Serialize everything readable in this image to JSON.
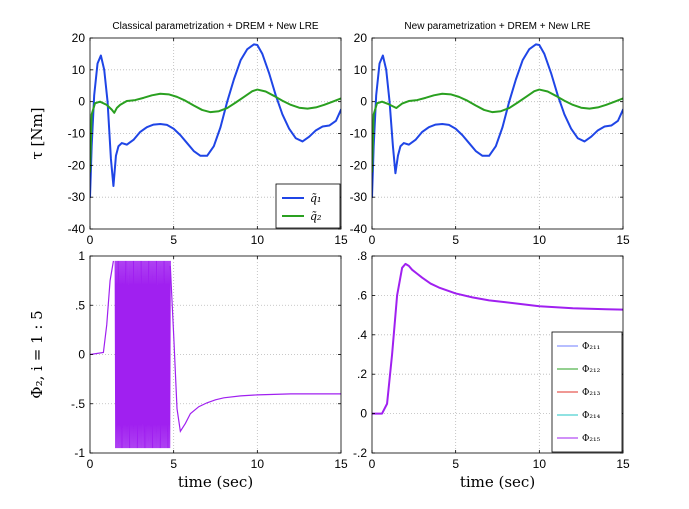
{
  "chart_data": [
    {
      "type": "line",
      "title": "Classical parametrization + DREM + New LRE",
      "xlabel": "",
      "ylabel": "τ [Nm]",
      "xlim": [
        0,
        15
      ],
      "ylim": [
        -40,
        20
      ],
      "xticks": [
        0,
        5,
        10,
        15
      ],
      "yticks": [
        -40,
        -30,
        -20,
        -10,
        0,
        10,
        20
      ],
      "grid": true,
      "legend": {
        "position": "bottom-right",
        "entries": [
          "q̃₁",
          "q̃₂"
        ]
      },
      "series": [
        {
          "name": "q̃₁",
          "color": "#1f45e6",
          "x": [
            0,
            0.1,
            0.25,
            0.45,
            0.65,
            0.85,
            1.05,
            1.25,
            1.4,
            1.55,
            1.7,
            1.9,
            2.2,
            2.6,
            3.0,
            3.4,
            3.8,
            4.2,
            4.6,
            5.0,
            5.4,
            5.8,
            6.2,
            6.6,
            7.0,
            7.4,
            7.8,
            8.2,
            8.6,
            9.0,
            9.4,
            9.8,
            10.0,
            10.3,
            10.7,
            11.1,
            11.5,
            11.9,
            12.3,
            12.7,
            13.1,
            13.5,
            13.9,
            14.3,
            14.7,
            15.0
          ],
          "y": [
            -30,
            -14,
            2,
            12,
            14.5,
            10,
            0,
            -18,
            -26.5,
            -17,
            -14,
            -13,
            -13.5,
            -12,
            -9.5,
            -8,
            -7.2,
            -7,
            -7.3,
            -8.5,
            -10.5,
            -13,
            -15.5,
            -17,
            -17,
            -14,
            -8,
            0,
            7,
            13,
            16.5,
            18,
            17.8,
            15,
            9,
            2,
            -4,
            -8.5,
            -11.5,
            -12.5,
            -11,
            -9,
            -7.8,
            -7.5,
            -6,
            -2.5
          ]
        },
        {
          "name": "q̃₂",
          "color": "#2aa020",
          "x": [
            0,
            0.1,
            0.3,
            0.6,
            1.0,
            1.3,
            1.45,
            1.6,
            1.8,
            2.2,
            2.7,
            3.2,
            3.7,
            4.2,
            4.7,
            5.2,
            5.7,
            6.2,
            6.7,
            7.2,
            7.7,
            8.2,
            8.7,
            9.2,
            9.7,
            10.0,
            10.5,
            11.0,
            11.5,
            12.0,
            12.5,
            13.0,
            13.5,
            14.0,
            14.5,
            15.0
          ],
          "y": [
            -22,
            -4,
            -0.5,
            0,
            -1,
            -2.5,
            -3.5,
            -2,
            -1,
            0.2,
            0.5,
            1.2,
            2,
            2.5,
            2.3,
            1.5,
            0.3,
            -1.2,
            -2.6,
            -3.3,
            -3,
            -2,
            -0.3,
            1.5,
            3.3,
            3.8,
            3.2,
            1.8,
            0.3,
            -1,
            -1.9,
            -2.2,
            -1.8,
            -1,
            0,
            1
          ]
        }
      ]
    },
    {
      "type": "line",
      "title": "New parametrization + DREM + New LRE",
      "xlabel": "",
      "ylabel": "",
      "xlim": [
        0,
        15
      ],
      "ylim": [
        -40,
        20
      ],
      "xticks": [
        0,
        5,
        10,
        15
      ],
      "yticks": [
        -40,
        -30,
        -20,
        -10,
        0,
        10,
        20
      ],
      "grid": true,
      "series": [
        {
          "name": "q̃₁",
          "color": "#1f45e6",
          "x": [
            0,
            0.1,
            0.25,
            0.45,
            0.65,
            0.85,
            1.05,
            1.25,
            1.4,
            1.55,
            1.7,
            1.9,
            2.2,
            2.6,
            3.0,
            3.4,
            3.8,
            4.2,
            4.6,
            5.0,
            5.4,
            5.8,
            6.2,
            6.6,
            7.0,
            7.4,
            7.8,
            8.2,
            8.6,
            9.0,
            9.4,
            9.8,
            10.0,
            10.3,
            10.7,
            11.1,
            11.5,
            11.9,
            12.3,
            12.7,
            13.1,
            13.5,
            13.9,
            14.3,
            14.7,
            15.0
          ],
          "y": [
            -30,
            -14,
            2,
            12,
            14.5,
            10,
            0,
            -14,
            -22.5,
            -17,
            -14,
            -13,
            -13.5,
            -12,
            -9.5,
            -8,
            -7.2,
            -7,
            -7.3,
            -8.5,
            -10.5,
            -13,
            -15.5,
            -17,
            -17,
            -14,
            -8,
            0,
            7,
            13,
            16.5,
            18,
            17.8,
            15,
            9,
            2,
            -4,
            -8.5,
            -11.5,
            -12.5,
            -11,
            -9,
            -7.8,
            -7.5,
            -6,
            -2.5
          ]
        },
        {
          "name": "q̃₂",
          "color": "#2aa020",
          "x": [
            0,
            0.1,
            0.3,
            0.6,
            1.0,
            1.3,
            1.45,
            1.6,
            1.8,
            2.2,
            2.7,
            3.2,
            3.7,
            4.2,
            4.7,
            5.2,
            5.7,
            6.2,
            6.7,
            7.2,
            7.7,
            8.2,
            8.7,
            9.2,
            9.7,
            10.0,
            10.5,
            11.0,
            11.5,
            12.0,
            12.5,
            13.0,
            13.5,
            14.0,
            14.5,
            15.0
          ],
          "y": [
            -22,
            -4,
            -0.5,
            0,
            -0.8,
            -1.6,
            -2,
            -1.4,
            -0.6,
            0.2,
            0.5,
            1.2,
            2,
            2.5,
            2.3,
            1.5,
            0.3,
            -1.2,
            -2.6,
            -3.3,
            -3,
            -2,
            -0.3,
            1.5,
            3.3,
            3.8,
            3.2,
            1.8,
            0.3,
            -1,
            -1.9,
            -2.2,
            -1.8,
            -1,
            0,
            1
          ]
        }
      ]
    },
    {
      "type": "line",
      "title": "",
      "xlabel": "time (sec)",
      "ylabel": "Φ₂,   i = 1 : 5",
      "xlim": [
        0,
        15
      ],
      "ylim": [
        -1,
        1
      ],
      "xticks": [
        0,
        5,
        10,
        15
      ],
      "yticks": [
        -1,
        -0.5,
        0,
        0.5,
        1
      ],
      "grid": true,
      "note": "dense oscillation between about 1.5 s and 4.8 s with envelope close to ±0.95",
      "oscillation": {
        "start": 1.5,
        "end": 4.8,
        "amplitude": 0.95,
        "cycles": 48,
        "color": "#a020f0"
      },
      "series": [
        {
          "name": "Φ₂₁ (all i overlap)",
          "color": "#a020f0",
          "x": [
            0,
            0.8,
            1.0,
            1.2,
            1.4,
            4.8,
            5.0,
            5.2,
            5.4,
            5.7,
            6.0,
            6.5,
            7.0,
            7.5,
            8.0,
            9.0,
            10.0,
            11.0,
            12.0,
            13.0,
            14.0,
            15.0
          ],
          "y": [
            0,
            0.02,
            0.3,
            0.75,
            0.95,
            0.9,
            0.2,
            -0.55,
            -0.78,
            -0.7,
            -0.6,
            -0.53,
            -0.49,
            -0.46,
            -0.44,
            -0.42,
            -0.41,
            -0.405,
            -0.4,
            -0.4,
            -0.4,
            -0.4
          ]
        }
      ]
    },
    {
      "type": "line",
      "title": "",
      "xlabel": "time (sec)",
      "ylabel": "",
      "xlim": [
        0,
        15
      ],
      "ylim": [
        -0.2,
        0.8
      ],
      "xticks": [
        0,
        5,
        10,
        15
      ],
      "yticks": [
        -0.2,
        0,
        0.2,
        0.4,
        0.6,
        0.8
      ],
      "grid": true,
      "legend": {
        "position": "bottom-right",
        "entries": [
          {
            "label": "Φ₂₁₁",
            "color": "#6f7dff"
          },
          {
            "label": "Φ₂₁₂",
            "color": "#2aa020"
          },
          {
            "label": "Φ₂₁₃",
            "color": "#e0302a"
          },
          {
            "label": "Φ₂₁₄",
            "color": "#20c6c6"
          },
          {
            "label": "Φ₂₁₅",
            "color": "#a020f0"
          }
        ]
      },
      "series": [
        {
          "name": "Φ₂₁₅",
          "color": "#a020f0",
          "x": [
            0,
            0.6,
            0.9,
            1.2,
            1.5,
            1.8,
            2.0,
            2.2,
            2.4,
            2.7,
            3.0,
            3.5,
            4.0,
            5.0,
            6.0,
            7.0,
            8.0,
            9.0,
            10.0,
            11.0,
            12.0,
            13.0,
            14.0,
            15.0
          ],
          "y": [
            0,
            0,
            0.05,
            0.3,
            0.6,
            0.74,
            0.76,
            0.75,
            0.73,
            0.71,
            0.69,
            0.66,
            0.64,
            0.61,
            0.59,
            0.575,
            0.565,
            0.555,
            0.545,
            0.54,
            0.535,
            0.532,
            0.53,
            0.528
          ]
        }
      ]
    }
  ]
}
